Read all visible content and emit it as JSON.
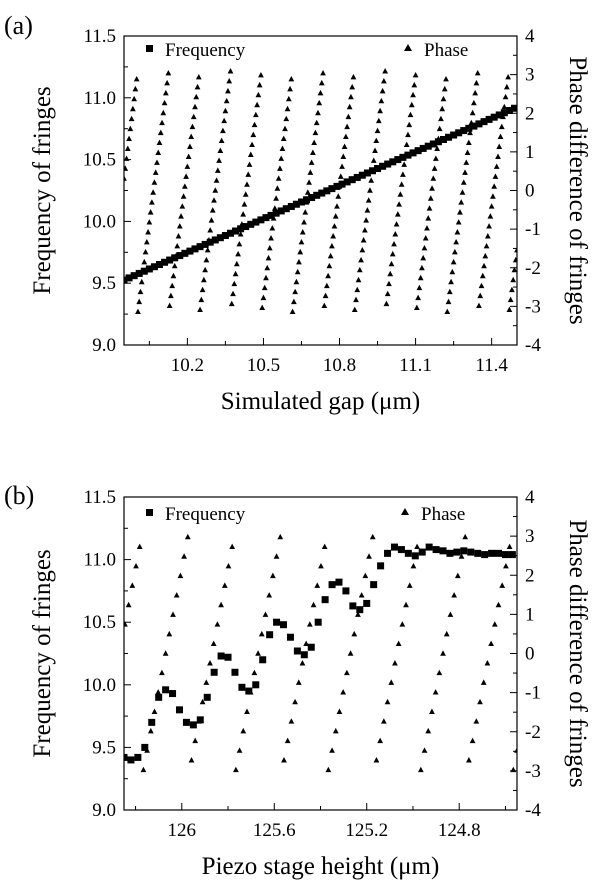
{
  "chart_data": [
    {
      "type": "scatter",
      "panel_label": "(a)",
      "xlabel": "Simulated gap (μm)",
      "ylabel": "Frequency of fringes",
      "y2label": "Phase difference of fringes",
      "xlim": [
        9.95,
        11.5
      ],
      "ylim": [
        9.0,
        11.5
      ],
      "y2lim": [
        -4,
        4
      ],
      "xticks": [
        10.2,
        10.5,
        10.8,
        11.1,
        11.4
      ],
      "xtick_labels": [
        "10.2",
        "10.5",
        "10.8",
        "11.1",
        "11.4"
      ],
      "yticks": [
        9.0,
        9.5,
        10.0,
        10.5,
        11.0,
        11.5
      ],
      "ytick_labels": [
        "9.0",
        "9.5",
        "10.0",
        "10.5",
        "11.0",
        "11.5"
      ],
      "y2ticks": [
        -4,
        -3,
        -2,
        -1,
        0,
        1,
        2,
        3,
        4
      ],
      "y2tick_labels": [
        "-4",
        "-3",
        "-2",
        "-1",
        "0",
        "1",
        "2",
        "3",
        "4"
      ],
      "grid": false,
      "legend_placement": "top",
      "series": [
        {
          "name": "Frequency",
          "marker": "square",
          "axis": "left",
          "x_start": 9.95,
          "x_end": 11.5,
          "x_step": 0.02,
          "y_line": {
            "slope": 0.903,
            "intercept": 0.54,
            "note": ""
          }
        },
        {
          "name": "Phase",
          "marker": "triangle",
          "axis": "right",
          "x_start": 9.95,
          "x_end": 11.5,
          "x_step": 0.005,
          "phase_wrap": {
            "period": 0.122,
            "offset": 10.005,
            "ymin": -3.14,
            "ymax": 3.14
          }
        }
      ]
    },
    {
      "type": "scatter",
      "panel_label": "(b)",
      "xlabel": "Piezo stage height (μm)",
      "ylabel": "Frequency of fringes",
      "y2label": "Phase difference of fringes",
      "x_reversed": true,
      "xlim": [
        126.25,
        124.55
      ],
      "ylim": [
        9.0,
        11.5
      ],
      "y2lim": [
        -4,
        4
      ],
      "xticks": [
        126.0,
        125.6,
        125.2,
        124.8
      ],
      "xtick_labels": [
        "126",
        "125.6",
        "125.2",
        "124.8"
      ],
      "yticks": [
        9.0,
        9.5,
        10.0,
        10.5,
        11.0,
        11.5
      ],
      "ytick_labels": [
        "9.0",
        "9.5",
        "10.0",
        "10.5",
        "11.0",
        "11.5"
      ],
      "y2ticks": [
        -4,
        -3,
        -2,
        -1,
        0,
        1,
        2,
        3,
        4
      ],
      "y2tick_labels": [
        "-4",
        "-3",
        "-2",
        "-1",
        "0",
        "1",
        "2",
        "3",
        "4"
      ],
      "grid": false,
      "legend_placement": "top",
      "series": [
        {
          "name": "Frequency",
          "marker": "square",
          "axis": "left",
          "x": [
            126.25,
            126.22,
            126.19,
            126.16,
            126.13,
            126.1,
            126.07,
            126.04,
            126.01,
            125.98,
            125.95,
            125.92,
            125.89,
            125.86,
            125.83,
            125.8,
            125.77,
            125.74,
            125.71,
            125.68,
            125.65,
            125.62,
            125.59,
            125.56,
            125.53,
            125.5,
            125.47,
            125.44,
            125.41,
            125.38,
            125.35,
            125.32,
            125.29,
            125.26,
            125.23,
            125.2,
            125.17,
            125.14,
            125.11,
            125.08,
            125.05,
            125.02,
            124.99,
            124.96,
            124.93,
            124.9,
            124.87,
            124.84,
            124.81,
            124.78,
            124.75,
            124.72,
            124.69,
            124.66,
            124.63,
            124.6,
            124.57
          ],
          "y": [
            9.42,
            9.4,
            9.42,
            9.5,
            9.7,
            9.9,
            9.96,
            9.93,
            9.8,
            9.7,
            9.68,
            9.72,
            9.9,
            10.1,
            10.23,
            10.22,
            10.1,
            9.98,
            9.95,
            10.0,
            10.2,
            10.4,
            10.5,
            10.48,
            10.38,
            10.27,
            10.24,
            10.3,
            10.5,
            10.68,
            10.8,
            10.82,
            10.75,
            10.63,
            10.6,
            10.65,
            10.8,
            10.95,
            11.05,
            11.1,
            11.08,
            11.05,
            11.03,
            11.06,
            11.1,
            11.08,
            11.07,
            11.05,
            11.06,
            11.07,
            11.06,
            11.05,
            11.04,
            11.05,
            11.05,
            11.04,
            11.04
          ]
        },
        {
          "name": "Phase",
          "marker": "triangle",
          "axis": "right",
          "phase_wrap": {
            "period": 0.2,
            "offset": 126.17,
            "x_step": 0.016,
            "ymin": -3.1,
            "ymax": 3.1
          }
        }
      ]
    }
  ]
}
